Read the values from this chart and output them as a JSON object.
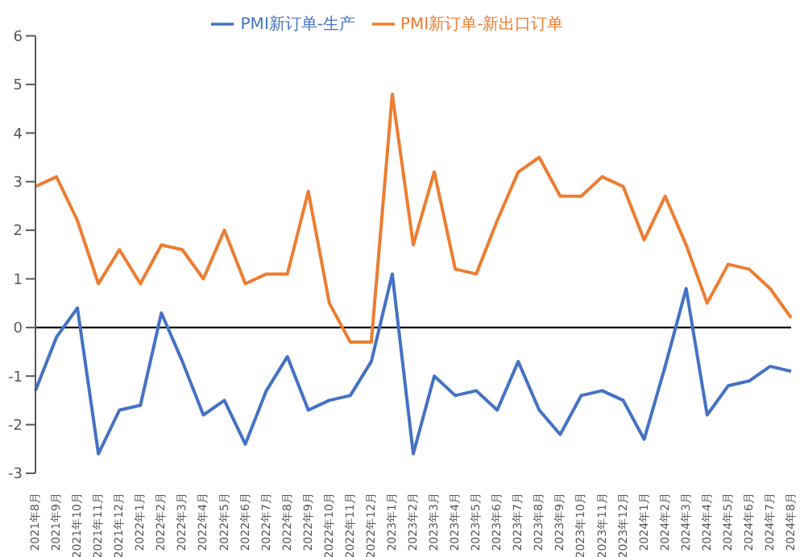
{
  "chart_data": {
    "type": "line",
    "categories": [
      "2021年8月",
      "2021年9月",
      "2021年10月",
      "2021年11月",
      "2021年12月",
      "2022年1月",
      "2022年2月",
      "2022年3月",
      "2022年4月",
      "2022年5月",
      "2022年6月",
      "2022年7月",
      "2022年8月",
      "2022年9月",
      "2022年10月",
      "2022年11月",
      "2022年12月",
      "2023年1月",
      "2023年2月",
      "2023年3月",
      "2023年4月",
      "2023年5月",
      "2023年6月",
      "2023年7月",
      "2023年8月",
      "2023年9月",
      "2023年10月",
      "2023年11月",
      "2023年12月",
      "2024年1月",
      "2024年2月",
      "2024年3月",
      "2024年4月",
      "2024年5月",
      "2024年6月",
      "2024年7月",
      "2024年8月"
    ],
    "series": [
      {
        "name": "PMI新订单-生产",
        "color": "#4472c4",
        "values": [
          -1.3,
          -0.2,
          0.4,
          -2.6,
          -1.7,
          -1.6,
          0.3,
          -0.7,
          -1.8,
          -1.5,
          -2.4,
          -1.3,
          -0.6,
          -1.7,
          -1.5,
          -1.4,
          -0.7,
          1.1,
          -2.6,
          -1.0,
          -1.4,
          -1.3,
          -1.7,
          -0.7,
          -1.7,
          -2.2,
          -1.4,
          -1.3,
          -1.5,
          -2.3,
          -0.8,
          0.8,
          -1.8,
          -1.2,
          -1.1,
          -0.8,
          -0.9
        ]
      },
      {
        "name": "PMI新订单-新出口订单",
        "color": "#ed7d31",
        "values": [
          2.9,
          3.1,
          2.2,
          0.9,
          1.6,
          0.9,
          1.7,
          1.6,
          1.0,
          2.0,
          0.9,
          1.1,
          1.1,
          2.8,
          0.5,
          -0.3,
          -0.3,
          4.8,
          1.7,
          3.2,
          1.2,
          1.1,
          2.2,
          3.2,
          3.5,
          2.7,
          2.7,
          3.1,
          2.9,
          1.8,
          2.7,
          1.7,
          0.5,
          1.3,
          1.2,
          0.8,
          0.2
        ]
      }
    ],
    "ylim": [
      -3,
      6
    ],
    "yticks": [
      -3,
      -2,
      -1,
      0,
      1,
      2,
      3,
      4,
      5,
      6
    ],
    "ref_lines": [
      {
        "axis": "y",
        "value": 0,
        "color": "#000000"
      }
    ],
    "grid": false,
    "legend": "top",
    "marker": "none",
    "line_style": "solid"
  }
}
